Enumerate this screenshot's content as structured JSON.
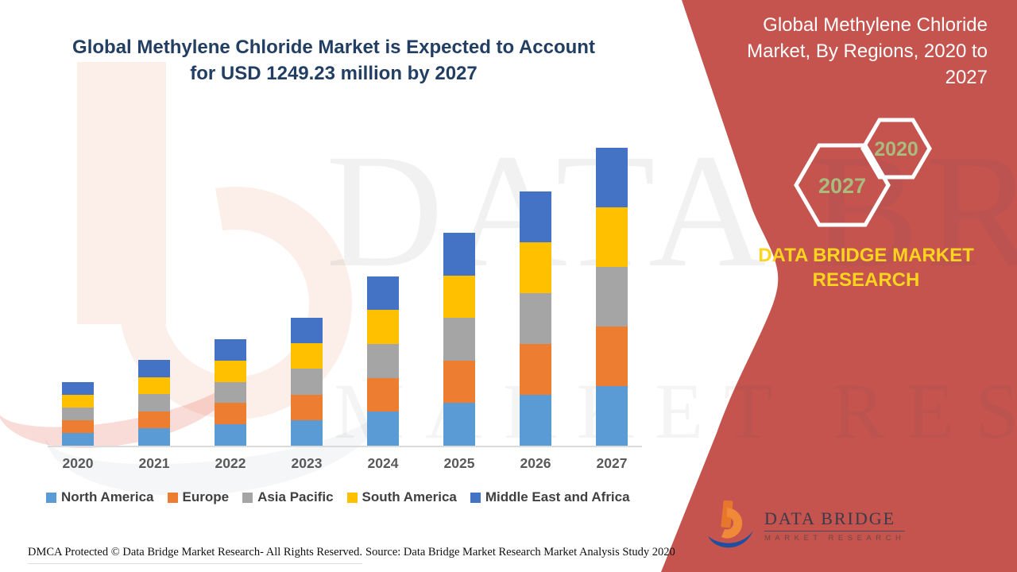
{
  "header": {
    "title": "Global Methylene Chloride Market is Expected to Account for USD 1249.23 million by 2027",
    "title_color": "#223F63"
  },
  "chart_data": {
    "type": "bar",
    "stacked": true,
    "title": "Global Methylene Chloride Market is Expected to Account for USD 1249.23 million by 2027",
    "categories": [
      "2020",
      "2021",
      "2022",
      "2023",
      "2024",
      "2025",
      "2026",
      "2027"
    ],
    "series": [
      {
        "name": "North America",
        "color": "#5B9BD5",
        "values": [
          53.4,
          72.0,
          89.4,
          107.2,
          142.2,
          178.6,
          213.6,
          249.8
        ]
      },
      {
        "name": "Europe",
        "color": "#ED7D31",
        "values": [
          53.4,
          72.0,
          89.4,
          107.2,
          142.2,
          178.6,
          213.6,
          249.8
        ]
      },
      {
        "name": "Asia Pacific",
        "color": "#A5A5A5",
        "values": [
          53.4,
          72.0,
          89.4,
          107.2,
          142.2,
          178.6,
          213.6,
          249.8
        ]
      },
      {
        "name": "South America",
        "color": "#FFC000",
        "values": [
          53.4,
          72.0,
          89.4,
          107.2,
          142.2,
          178.6,
          213.6,
          249.8
        ]
      },
      {
        "name": "Middle East and Africa",
        "color": "#4472C4",
        "values": [
          53.4,
          72.0,
          89.4,
          107.2,
          142.2,
          178.6,
          213.6,
          250.0
        ]
      }
    ],
    "estimated_totals": [
      267,
      360,
      447,
      536,
      711,
      893,
      1068,
      1249.23
    ],
    "unit": "USD million (segments estimated from bar heights; 2027 total labeled as 1249.23)",
    "ylim": [
      0,
      1350
    ],
    "grid": false,
    "y_axis_visible": false,
    "legend_position": "bottom"
  },
  "side_panel": {
    "bg_color": "#C5534E",
    "title": "Global Methylene Chloride Market, By Regions, 2020 to 2027",
    "hexagons": [
      {
        "label": "2027"
      },
      {
        "label": "2020"
      }
    ],
    "hexagon_label_color": "#A9BC7D",
    "brand_text": "DATA BRIDGE MARKET RESEARCH",
    "brand_color": "#FFD41E",
    "logo": {
      "name": "DATA BRIDGE",
      "tagline": "MARKET RESEARCH"
    }
  },
  "watermark": {
    "line1": "DATA BRIDGE",
    "line2": "MARKET RESEARCH"
  },
  "footer": {
    "dmca": "DMCA Protected © Data Bridge Market Research- All Rights Reserved.",
    "source": "Source: Data Bridge Market Research Market Analysis Study 2020"
  }
}
